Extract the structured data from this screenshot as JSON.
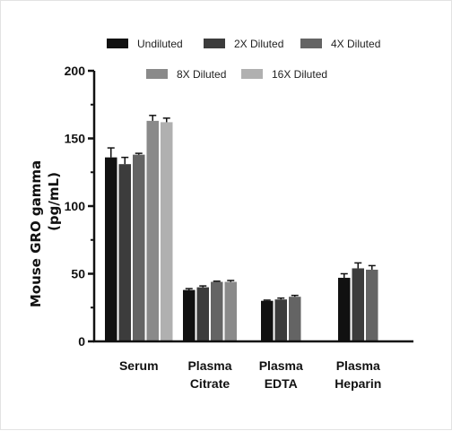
{
  "chart_data": {
    "type": "bar",
    "ylabel_line1": "Mouse GRO gamma",
    "ylabel_line2": "(pg/mL)",
    "ylim": [
      0,
      200
    ],
    "yticks": [
      "0",
      "50",
      "100",
      "150",
      "200"
    ],
    "categories": [
      {
        "line1": "Serum",
        "line2": ""
      },
      {
        "line1": "Plasma",
        "line2": "Citrate"
      },
      {
        "line1": "Plasma",
        "line2": "EDTA"
      },
      {
        "line1": "Plasma",
        "line2": "Heparin"
      }
    ],
    "legend": {
      "placement": "top"
    },
    "series": [
      {
        "name": "Undiluted",
        "color": "#111111",
        "values": [
          136,
          38,
          30,
          47
        ],
        "errors": [
          7,
          1,
          0.5,
          3
        ]
      },
      {
        "name": "2X Diluted",
        "color": "#3c3c3c",
        "values": [
          131,
          40,
          31,
          54
        ],
        "errors": [
          5,
          1,
          1,
          4
        ]
      },
      {
        "name": "4X Diluted",
        "color": "#646464",
        "values": [
          138,
          44,
          33,
          53
        ],
        "errors": [
          1,
          0.5,
          1,
          3
        ]
      },
      {
        "name": "8X Diluted",
        "color": "#8a8a8a",
        "values": [
          163,
          44,
          null,
          null
        ],
        "errors": [
          4,
          1,
          null,
          null
        ]
      },
      {
        "name": "16X Diluted",
        "color": "#b0b0b0",
        "values": [
          162,
          null,
          null,
          null
        ],
        "errors": [
          3,
          null,
          null,
          null
        ]
      }
    ]
  }
}
